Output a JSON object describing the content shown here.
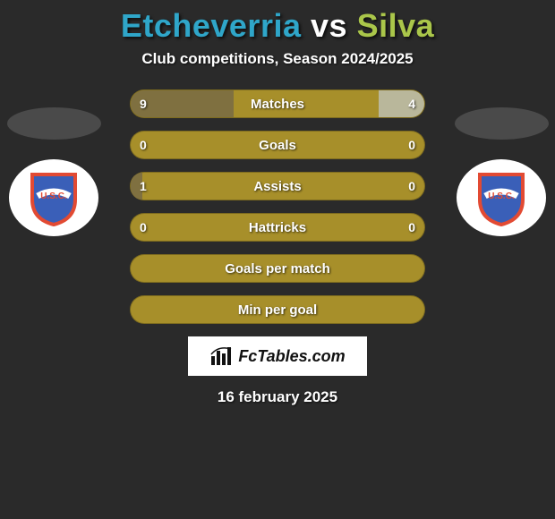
{
  "background_color": "#2a2a2a",
  "title": {
    "player_left": "Etcheverria",
    "vs": "vs",
    "player_right": "Silva",
    "color_left": "#2fa6c9",
    "color_vs": "#ffffff",
    "color_right": "#aac64a",
    "fontsize": 36
  },
  "subtitle": "Club competitions, Season 2024/2025",
  "avatar": {
    "ellipse_color": "#4a4a4a",
    "badge_bg": "#ffffff",
    "shield_fill": "#3a5fb8",
    "shield_border": "#e24a33",
    "shield_text": "U.S.C."
  },
  "stats": {
    "bar_base_color": "#a78f2a",
    "bar_left_color": "#7f7040",
    "bar_right_color": "#b9b79b",
    "label_color": "#ffffff",
    "label_fontsize": 15,
    "value_fontsize": 14,
    "max_half_pct": 35,
    "rows": [
      {
        "label": "Matches",
        "left_val": "9",
        "right_val": "4",
        "left_num": 9,
        "right_num": 4,
        "split": true
      },
      {
        "label": "Goals",
        "left_val": "0",
        "right_val": "0",
        "left_num": 0,
        "right_num": 0,
        "split": true
      },
      {
        "label": "Assists",
        "left_val": "1",
        "right_val": "0",
        "left_num": 1,
        "right_num": 0,
        "split": true
      },
      {
        "label": "Hattricks",
        "left_val": "0",
        "right_val": "0",
        "left_num": 0,
        "right_num": 0,
        "split": true
      },
      {
        "label": "Goals per match",
        "split": false
      },
      {
        "label": "Min per goal",
        "split": false
      }
    ]
  },
  "footer": {
    "logo_text": "FcTables.com",
    "date": "16 february 2025"
  }
}
